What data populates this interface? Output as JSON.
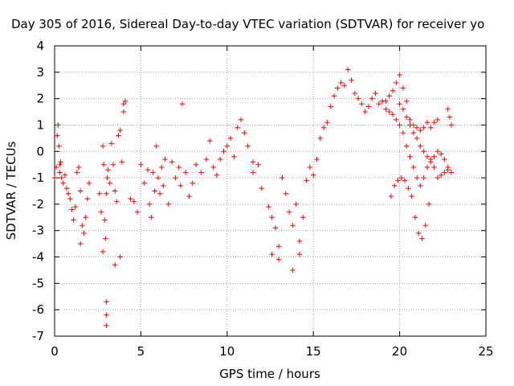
{
  "chart_data": {
    "type": "scatter",
    "title": "Day 305 of 2016, Sidereal Day-to-day VTEC variation (SDTVAR) for receiver yo",
    "xlabel": "GPS time / hours",
    "ylabel": "SDTVAR / TECUs",
    "xlim": [
      0,
      25
    ],
    "ylim": [
      -7,
      4
    ],
    "xticks": [
      0,
      5,
      10,
      15,
      20,
      25
    ],
    "yticks": [
      -7,
      -6,
      -5,
      -4,
      -3,
      -2,
      -1,
      0,
      1,
      2,
      3,
      4
    ],
    "grid": true,
    "marker": "+",
    "color": "#ff0000",
    "series": [
      {
        "name": "SDTVAR",
        "x": [
          0.0,
          0.1,
          0.15,
          0.2,
          0.25,
          0.3,
          0.35,
          0.4,
          0.5,
          0.6,
          0.7,
          0.8,
          0.9,
          1.0,
          1.1,
          1.2,
          1.3,
          1.4,
          1.5,
          1.6,
          1.7,
          1.8,
          1.9,
          2.0,
          2.6,
          2.7,
          2.8,
          2.85,
          2.9,
          2.95,
          3.0,
          3.05,
          3.1,
          3.2,
          3.3,
          3.4,
          3.5,
          3.6,
          3.7,
          3.8,
          3.9,
          4.0,
          4.1,
          4.4,
          4.6,
          4.8,
          5.0,
          5.2,
          5.4,
          5.5,
          5.6,
          5.7,
          5.8,
          5.9,
          6.0,
          6.1,
          6.2,
          6.3,
          6.4,
          6.6,
          6.8,
          7.0,
          7.2,
          7.3,
          7.4,
          7.6,
          7.8,
          8.0,
          8.2,
          8.5,
          8.8,
          9.0,
          9.2,
          9.4,
          9.6,
          9.8,
          10.0,
          10.2,
          10.4,
          10.6,
          10.8,
          11.0,
          11.2,
          11.5,
          11.8,
          12.0,
          12.4,
          12.6,
          12.8,
          13.0,
          13.2,
          13.4,
          13.6,
          13.8,
          14.0,
          14.2,
          14.4,
          14.6,
          14.8,
          15.0,
          15.2,
          15.4,
          15.6,
          15.8,
          16.0,
          16.2,
          16.4,
          16.6,
          16.8,
          17.0,
          17.2,
          17.4,
          17.6,
          17.8,
          18.0,
          18.2,
          18.4,
          18.6,
          18.8,
          19.0,
          19.2,
          19.4,
          19.6,
          19.8,
          20.0,
          20.2,
          20.4,
          20.6,
          20.8,
          21.0,
          21.2,
          21.4,
          21.6,
          21.8,
          22.0,
          22.2,
          19.0,
          19.2,
          19.4,
          19.6,
          19.8,
          20.0,
          20.2,
          20.4,
          20.6,
          20.8,
          21.0,
          21.2,
          21.4,
          21.6,
          21.8,
          22.0,
          22.2,
          22.4,
          22.6,
          22.8,
          19.5,
          19.7,
          19.9,
          20.1,
          20.3,
          20.5,
          20.7,
          20.9,
          21.1,
          21.3,
          21.5,
          21.7,
          20.0,
          20.2,
          20.4,
          20.6,
          20.8,
          21.0,
          21.2,
          21.4,
          21.6,
          21.8,
          22.0,
          22.2,
          22.4,
          22.6,
          22.8,
          23.0,
          22.8,
          22.9,
          23.0,
          0.3,
          1.5,
          2.8,
          3.0,
          3.0,
          3.0,
          3.5,
          3.8,
          4.0,
          11.5,
          12.6,
          13.0,
          13.8,
          14.2
        ],
        "y": [
          -1.0,
          -0.6,
          0.6,
          1.0,
          0.2,
          -0.8,
          -0.4,
          -1.0,
          -1.2,
          -0.9,
          -1.4,
          -1.6,
          -1.8,
          -2.2,
          -2.6,
          -2.1,
          -0.8,
          -0.6,
          -1.5,
          -2.8,
          -3.1,
          -2.5,
          -1.8,
          -1.2,
          -1.6,
          -2.3,
          0.2,
          -0.5,
          -2.6,
          -3.3,
          -1.6,
          -1.0,
          -0.7,
          -1.2,
          0.3,
          -0.5,
          -1.5,
          -1.9,
          0.6,
          0.8,
          -0.4,
          1.5,
          1.9,
          -1.8,
          -1.9,
          -2.3,
          -0.5,
          -1.2,
          -0.7,
          -2.0,
          -2.5,
          -0.8,
          -1.5,
          0.2,
          -1.0,
          -1.6,
          -0.6,
          -1.3,
          -0.3,
          -2.0,
          -0.4,
          -1.0,
          -0.6,
          -1.3,
          1.8,
          -0.8,
          -1.7,
          -1.2,
          -0.5,
          -0.8,
          -0.3,
          0.4,
          -0.6,
          -0.9,
          -0.3,
          0.0,
          0.2,
          0.5,
          -0.2,
          0.9,
          1.2,
          0.7,
          0.2,
          -0.4,
          -0.5,
          -1.4,
          -2.1,
          -2.5,
          -2.9,
          -3.6,
          -1.0,
          -1.6,
          -2.3,
          -2.8,
          -2.0,
          -3.4,
          -2.5,
          -1.1,
          -0.6,
          -0.9,
          -0.3,
          0.5,
          0.9,
          1.1,
          1.7,
          2.1,
          2.4,
          2.6,
          2.5,
          3.1,
          2.7,
          2.2,
          2.0,
          1.8,
          1.5,
          1.7,
          2.0,
          2.2,
          1.8,
          1.9,
          1.9,
          2.1,
          2.3,
          2.6,
          2.9,
          2.4,
          1.9,
          1.2,
          1.0,
          0.9,
          0.8,
          0.9,
          1.1,
          0.9,
          1.1,
          1.2,
          1.9,
          1.6,
          1.5,
          1.4,
          1.2,
          1.0,
          0.7,
          0.2,
          -0.2,
          -0.6,
          -1.0,
          -1.3,
          -1.0,
          -0.6,
          -0.4,
          -0.6,
          -1.0,
          -0.9,
          -0.8,
          -0.7,
          -1.7,
          -1.3,
          -1.1,
          -1.0,
          -1.1,
          -1.4,
          -1.7,
          -2.5,
          -3.1,
          -3.3,
          -2.8,
          -2.0,
          1.8,
          1.6,
          1.3,
          1.0,
          0.7,
          0.5,
          0.2,
          0.0,
          -0.2,
          -0.3,
          -0.2,
          0.0,
          -0.1,
          -0.3,
          -0.6,
          -0.8,
          1.6,
          1.3,
          1.0,
          -0.5,
          -3.5,
          -3.8,
          -6.6,
          -6.2,
          -5.7,
          -4.3,
          -4.0,
          1.8,
          -0.8,
          -3.9,
          -4.1,
          -4.5,
          -3.9
        ]
      }
    ]
  }
}
